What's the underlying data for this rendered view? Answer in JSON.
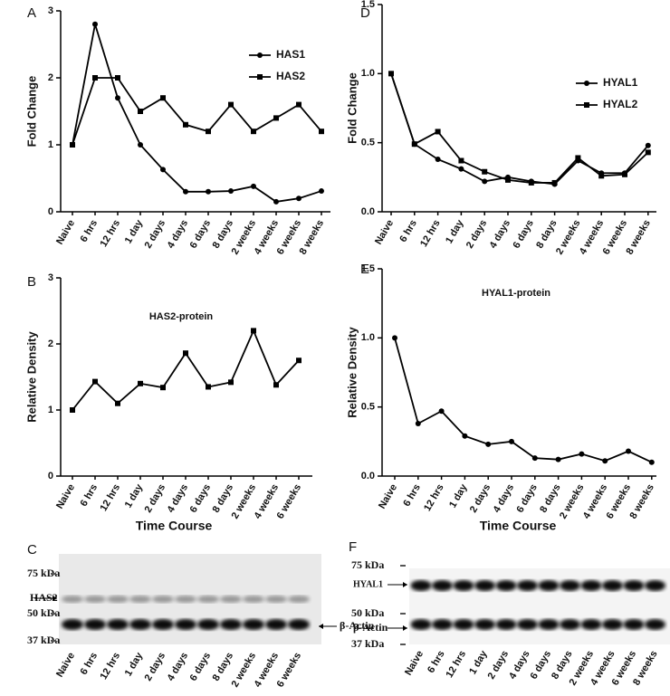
{
  "chart_data": [
    {
      "type": "line",
      "panel": "A",
      "ylabel": "Fold Change",
      "categories": [
        "Naive",
        "6 hrs",
        "12 hrs",
        "1 day",
        "2 days",
        "4 days",
        "6 days",
        "8 days",
        "2 weeks",
        "4 weeks",
        "6 weeks",
        "8 weeks"
      ],
      "series": [
        {
          "name": "HAS1",
          "color": "#000000",
          "marker": "circle",
          "values": [
            1,
            2.8,
            1.7,
            1.0,
            0.63,
            0.3,
            0.3,
            0.31,
            0.38,
            0.15,
            0.2,
            0.31
          ]
        },
        {
          "name": "HAS2",
          "color": "#000000",
          "marker": "square",
          "values": [
            1,
            2.0,
            2.0,
            1.5,
            1.7,
            1.3,
            1.2,
            1.6,
            1.2,
            1.4,
            1.6,
            1.2
          ]
        }
      ],
      "ylim": [
        0,
        3
      ],
      "yticks": [
        0,
        1,
        2,
        3
      ],
      "legend": "upper right"
    },
    {
      "type": "line",
      "panel": "D",
      "ylabel": "Fold Change",
      "categories": [
        "Naive",
        "6 hrs",
        "12 hrs",
        "1 day",
        "2 days",
        "4 days",
        "6 days",
        "8 days",
        "2 weeks",
        "4 weeks",
        "6 weeks",
        "8 weeks"
      ],
      "series": [
        {
          "name": "HYAL1",
          "color": "#000000",
          "marker": "circle",
          "values": [
            1,
            0.49,
            0.38,
            0.31,
            0.22,
            0.25,
            0.22,
            0.2,
            0.37,
            0.28,
            0.28,
            0.48
          ]
        },
        {
          "name": "HYAL2",
          "color": "#000000",
          "marker": "square",
          "values": [
            1,
            0.49,
            0.58,
            0.37,
            0.29,
            0.23,
            0.21,
            0.21,
            0.39,
            0.26,
            0.27,
            0.43
          ]
        }
      ],
      "ylim": [
        0,
        1.5
      ],
      "yticks": [
        {
          "value": 0,
          "label": "0.0"
        },
        0.5,
        {
          "value": 1,
          "label": "1.0"
        },
        1.5
      ],
      "legend": "upper right"
    },
    {
      "type": "line",
      "panel": "B",
      "title": "HAS2-protein",
      "ylabel": "Relative Density",
      "xlabel": "Time Course",
      "categories": [
        "Naive",
        "6 hrs",
        "12 hrs",
        "1 day",
        "2 days",
        "4 days",
        "6 days",
        "8 days",
        "2 weeks",
        "4 weeks",
        "6 weeks"
      ],
      "values": [
        1.0,
        1.43,
        1.1,
        1.4,
        1.34,
        1.86,
        1.35,
        1.42,
        2.2,
        1.38,
        1.75
      ],
      "color": "#000000",
      "marker": "square",
      "ylim": [
        0,
        3
      ],
      "yticks": [
        0,
        1,
        2,
        3
      ]
    },
    {
      "type": "line",
      "panel": "E",
      "title": "HYAL1-protein",
      "ylabel": "Relative Density",
      "xlabel": "Time Course",
      "categories": [
        "Naive",
        "6 hrs",
        "12 hrs",
        "1 day",
        "2 days",
        "4 days",
        "6 days",
        "8 days",
        "2 weeks",
        "4 weeks",
        "6 weeks",
        "8 weeks"
      ],
      "values": [
        1.0,
        0.38,
        0.47,
        0.29,
        0.23,
        0.25,
        0.13,
        0.12,
        0.16,
        0.11,
        0.18,
        0.1
      ],
      "color": "#000000",
      "marker": "circle",
      "ylim": [
        0,
        1.5
      ],
      "yticks": [
        {
          "value": 0,
          "label": "0.0"
        },
        0.5,
        {
          "value": 1,
          "label": "1.0"
        },
        1.5
      ]
    }
  ],
  "blots": [
    {
      "panel": "C",
      "markers": [
        "75 kDa",
        "50 kDa",
        "37 kDa"
      ],
      "band_labels": [
        "HAS2",
        "β-Actin"
      ],
      "lanes": [
        "Naive",
        "6 hrs",
        "12 hrs",
        "1 day",
        "2 days",
        "4 days",
        "6 days",
        "8 days",
        "2 weeks",
        "4 weeks",
        "6 weeks"
      ]
    },
    {
      "panel": "F",
      "markers": [
        "75 kDa",
        "50 kDa",
        "37 kDa"
      ],
      "band_labels": [
        "HYAL1",
        "β-Actin"
      ],
      "lanes": [
        "Naive",
        "6 hrs",
        "12 hrs",
        "1 day",
        "2 days",
        "4 days",
        "6 days",
        "8 days",
        "2 weeks",
        "4 weeks",
        "6 weeks",
        "8 weeks"
      ]
    }
  ]
}
